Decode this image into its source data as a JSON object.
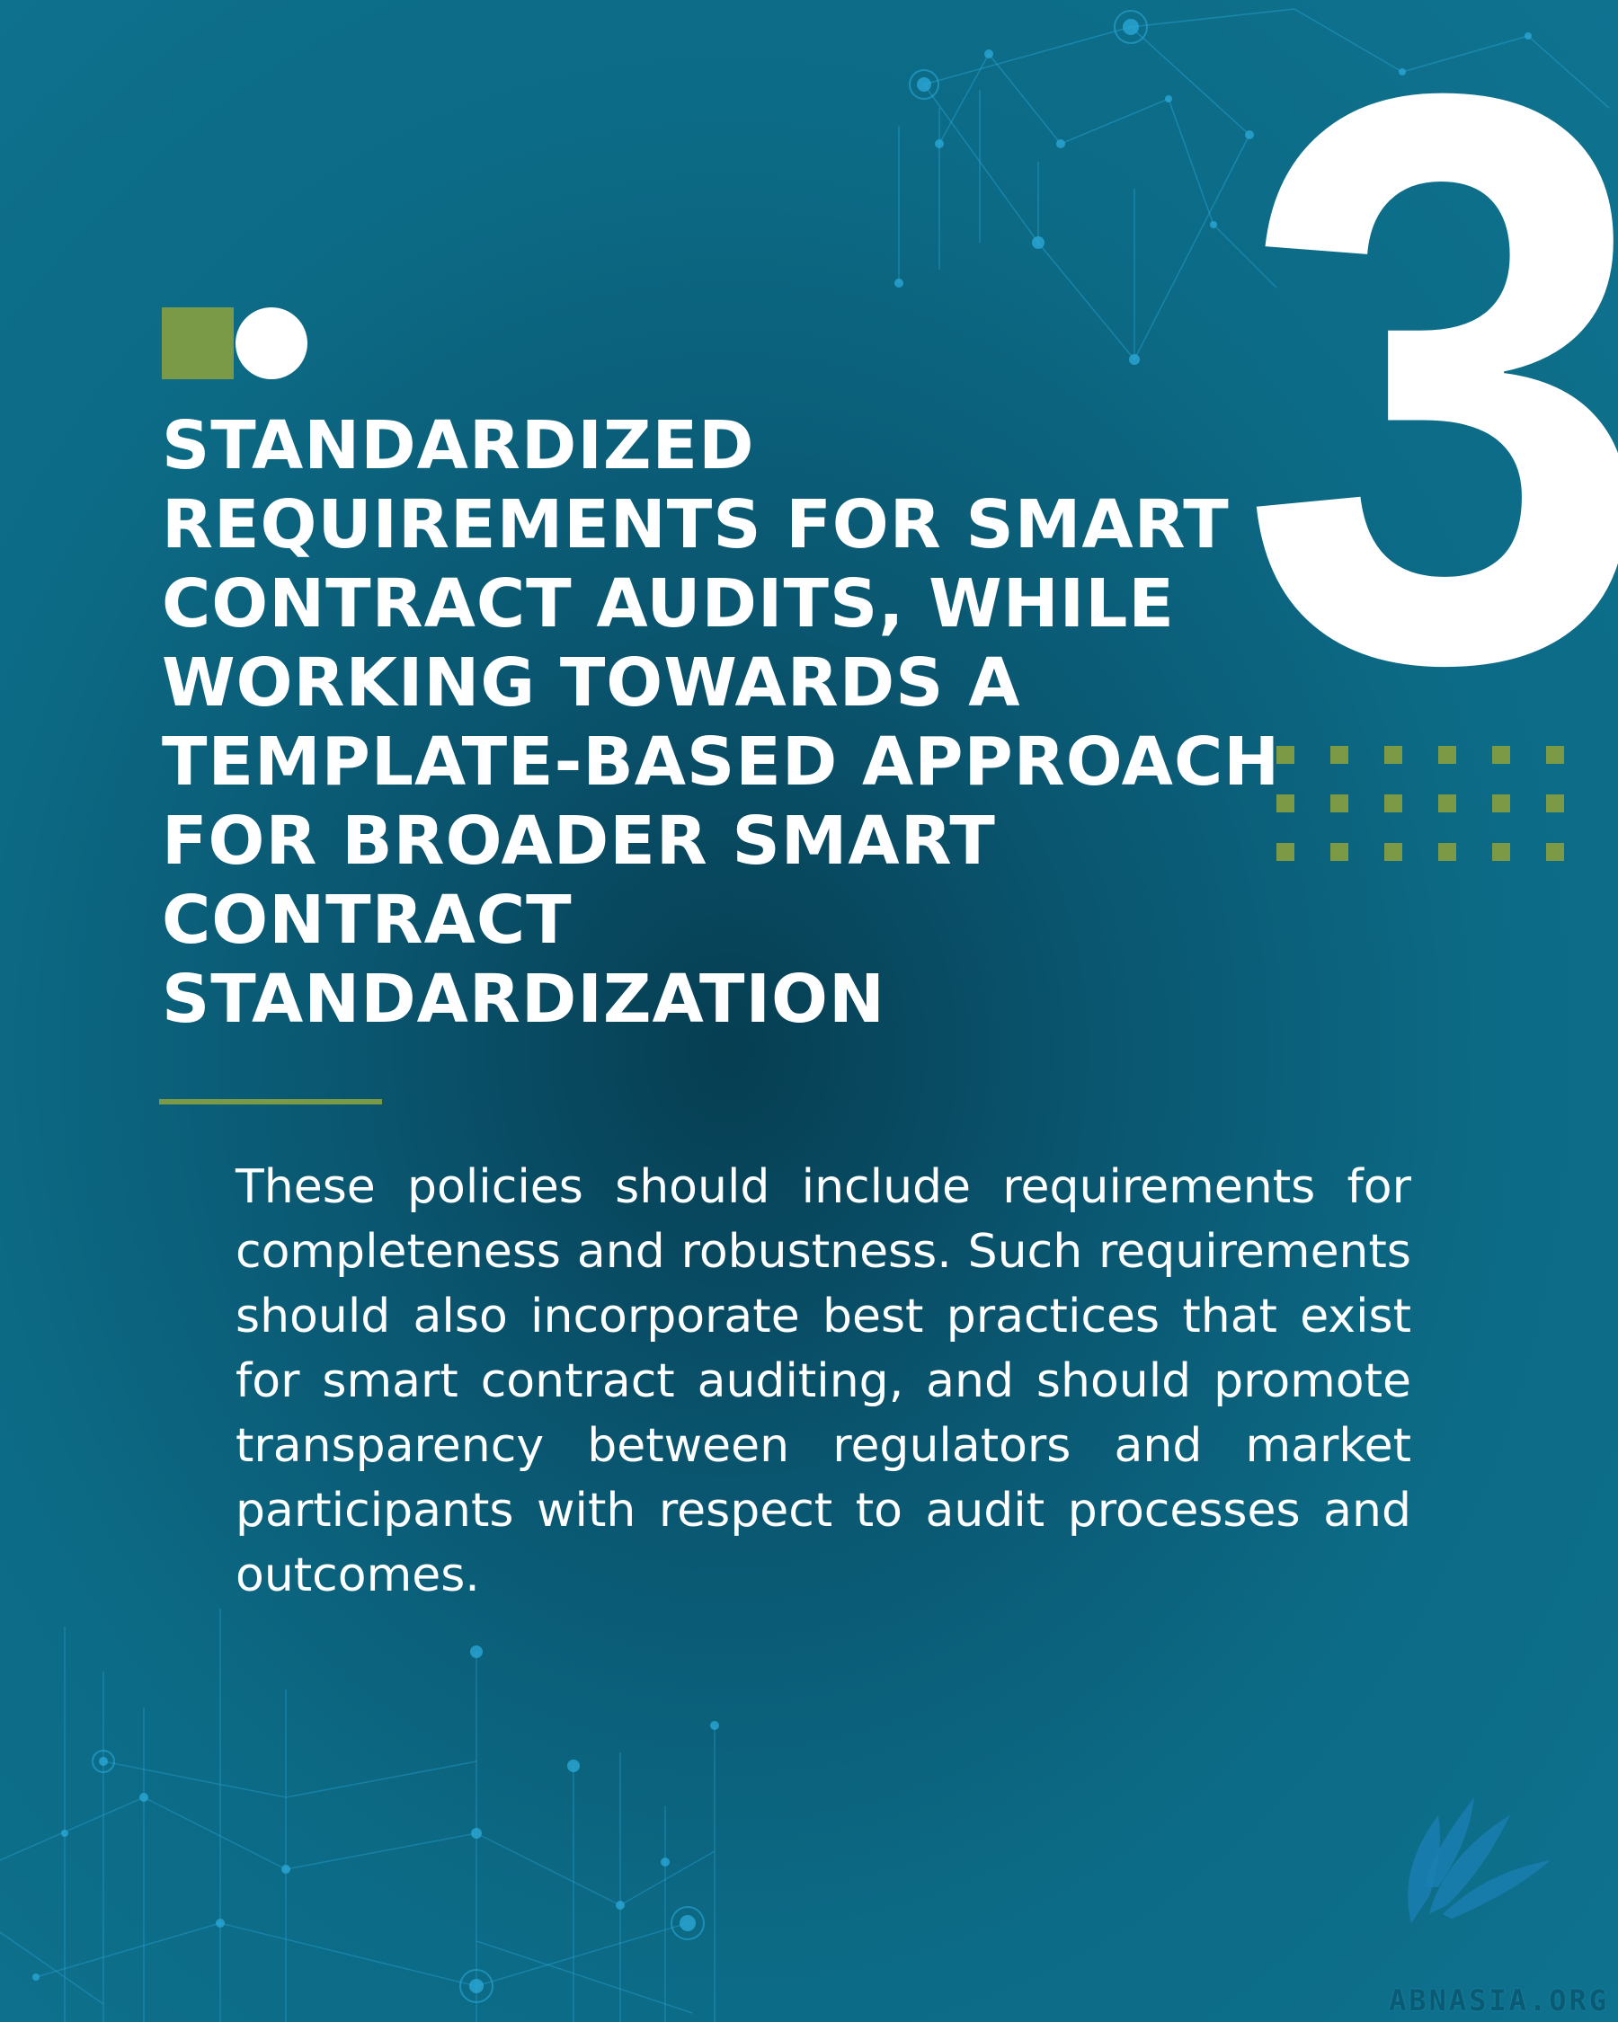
{
  "colors": {
    "background": "#0c6a85",
    "background_dark": "#063e52",
    "accent_green": "#7a9a48",
    "text": "#ffffff",
    "network_lines": "#2aa6d6"
  },
  "big_number": "3",
  "badge": {
    "square_color": "#7a9a48",
    "circle_color": "#ffffff"
  },
  "heading": {
    "lines": [
      "STANDARDIZED",
      "REQUIREMENTS FOR SMART",
      "CONTRACT AUDITS, WHILE",
      "WORKING TOWARDS A",
      "TEMPLATE-BASED APPROACH",
      "FOR BROADER SMART",
      "CONTRACT",
      "STANDARDIZATION"
    ]
  },
  "body": "These policies should include requirements for completeness and robustness. Such requirements should also incorporate best practices that exist for smart contract auditing, and should promote transparency between regulators and market participants with respect to audit processes and outcomes.",
  "logo": {
    "text": "ABNASIA.ORG",
    "icon": "feather-wing-icon"
  },
  "decor": {
    "dot_grid_rows": 3,
    "dot_grid_cols": 6,
    "icons": [
      "network-nodes-top-right",
      "network-nodes-bottom-left"
    ]
  }
}
